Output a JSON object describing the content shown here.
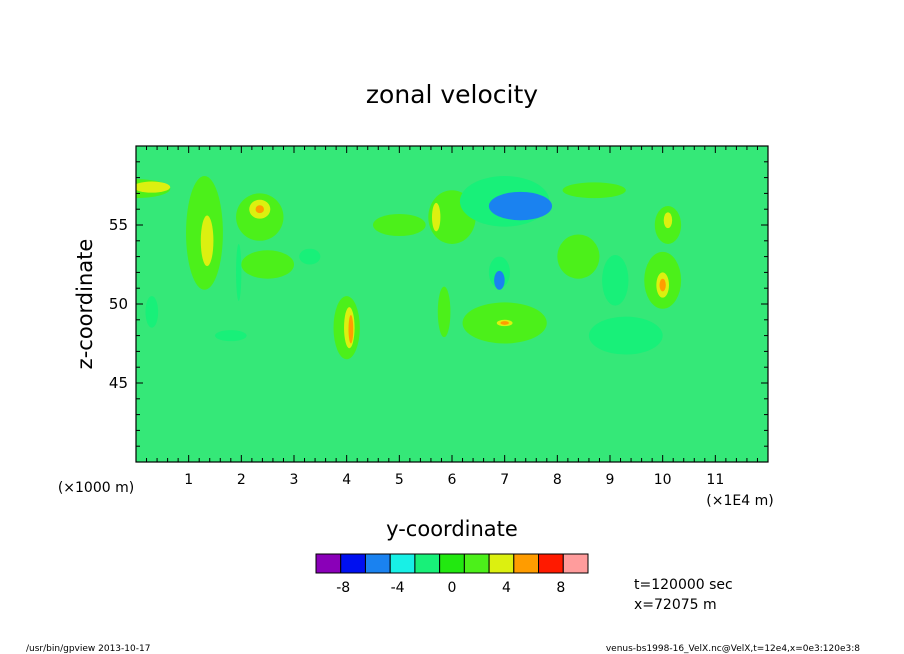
{
  "chart_data": {
    "type": "heatmap",
    "title": "zonal velocity",
    "xlabel": "y-coordinate",
    "ylabel": "z-coordinate",
    "x_unit_left": "(×1000 m)",
    "x_unit_right": "(×1E4 m)",
    "x_ticks": [
      "1",
      "2",
      "3",
      "4",
      "5",
      "6",
      "7",
      "8",
      "9",
      "10",
      "11"
    ],
    "y_ticks": [
      "45",
      "50",
      "55"
    ],
    "xlim": [
      0,
      12
    ],
    "ylim": [
      40,
      60
    ],
    "colorbar": {
      "levels": [
        -10,
        -8,
        -6,
        -4,
        -2,
        0,
        2,
        4,
        6,
        8,
        10
      ],
      "labels": [
        "-8",
        "-4",
        "0",
        "4",
        "8"
      ],
      "colors": [
        "#8a00b8",
        "#0010f0",
        "#1a82f0",
        "#18f0e6",
        "#18f079",
        "#22e810",
        "#4cf01a",
        "#dcf010",
        "#ff9c00",
        "#ff1a00",
        "#ff9c9c"
      ]
    },
    "background_color": "#35e878",
    "regions": [
      {
        "v": 2,
        "x": 0.0,
        "y": 57.3,
        "rx": 0.65,
        "ry": 0.6
      },
      {
        "v": 4,
        "x": 0.3,
        "y": 57.4,
        "rx": 0.35,
        "ry": 0.35
      },
      {
        "v": 2,
        "x": 1.3,
        "y": 54.5,
        "rx": 0.35,
        "ry": 3.6
      },
      {
        "v": 4,
        "x": 1.35,
        "y": 54.0,
        "rx": 0.12,
        "ry": 1.6
      },
      {
        "v": 2,
        "x": 2.35,
        "y": 55.5,
        "rx": 0.45,
        "ry": 1.5
      },
      {
        "v": 4,
        "x": 2.35,
        "y": 56.0,
        "rx": 0.2,
        "ry": 0.6
      },
      {
        "v": 6,
        "x": 2.35,
        "y": 56.0,
        "rx": 0.08,
        "ry": 0.25
      },
      {
        "v": -2,
        "x": 1.95,
        "y": 52.0,
        "rx": 0.05,
        "ry": 1.8
      },
      {
        "v": 2,
        "x": 2.5,
        "y": 52.5,
        "rx": 0.5,
        "ry": 0.9
      },
      {
        "v": -2,
        "x": 3.3,
        "y": 53.0,
        "rx": 0.2,
        "ry": 0.5
      },
      {
        "v": 2,
        "x": 4.0,
        "y": 48.5,
        "rx": 0.25,
        "ry": 2.0
      },
      {
        "v": 4,
        "x": 4.05,
        "y": 48.5,
        "rx": 0.1,
        "ry": 1.3
      },
      {
        "v": 6,
        "x": 4.08,
        "y": 48.4,
        "rx": 0.045,
        "ry": 0.9
      },
      {
        "v": 2,
        "x": 5.0,
        "y": 55.0,
        "rx": 0.5,
        "ry": 0.7
      },
      {
        "v": 2,
        "x": 6.0,
        "y": 55.5,
        "rx": 0.45,
        "ry": 1.7
      },
      {
        "v": 4,
        "x": 5.7,
        "y": 55.5,
        "rx": 0.08,
        "ry": 0.9
      },
      {
        "v": 2,
        "x": 5.85,
        "y": 49.5,
        "rx": 0.12,
        "ry": 1.6
      },
      {
        "v": -2,
        "x": 7.0,
        "y": 56.5,
        "rx": 0.85,
        "ry": 1.6
      },
      {
        "v": -6,
        "x": 7.3,
        "y": 56.2,
        "rx": 0.6,
        "ry": 0.9
      },
      {
        "v": -2,
        "x": 6.9,
        "y": 52.0,
        "rx": 0.2,
        "ry": 1.0
      },
      {
        "v": -6,
        "x": 6.9,
        "y": 51.5,
        "rx": 0.1,
        "ry": 0.6
      },
      {
        "v": 2,
        "x": 7.0,
        "y": 48.8,
        "rx": 0.8,
        "ry": 1.3
      },
      {
        "v": 4,
        "x": 7.0,
        "y": 48.8,
        "rx": 0.15,
        "ry": 0.2
      },
      {
        "v": 6,
        "x": 7.0,
        "y": 48.8,
        "rx": 0.08,
        "ry": 0.12
      },
      {
        "v": 2,
        "x": 8.4,
        "y": 53.0,
        "rx": 0.4,
        "ry": 1.4
      },
      {
        "v": 2,
        "x": 8.7,
        "y": 57.2,
        "rx": 0.6,
        "ry": 0.5
      },
      {
        "v": -2,
        "x": 9.3,
        "y": 48.0,
        "rx": 0.7,
        "ry": 1.2
      },
      {
        "v": -2,
        "x": 9.1,
        "y": 51.5,
        "rx": 0.25,
        "ry": 1.6
      },
      {
        "v": 2,
        "x": 10.0,
        "y": 51.5,
        "rx": 0.35,
        "ry": 1.8
      },
      {
        "v": 4,
        "x": 10.0,
        "y": 51.2,
        "rx": 0.12,
        "ry": 0.8
      },
      {
        "v": 6,
        "x": 10.0,
        "y": 51.2,
        "rx": 0.06,
        "ry": 0.4
      },
      {
        "v": 2,
        "x": 10.1,
        "y": 55.0,
        "rx": 0.25,
        "ry": 1.2
      },
      {
        "v": 4,
        "x": 10.1,
        "y": 55.3,
        "rx": 0.08,
        "ry": 0.5
      },
      {
        "v": -2,
        "x": 0.3,
        "y": 49.5,
        "rx": 0.12,
        "ry": 1.0
      },
      {
        "v": -2,
        "x": 1.8,
        "y": 48.0,
        "rx": 0.3,
        "ry": 0.35
      }
    ],
    "annotations": {
      "time": "t=120000 sec",
      "position": "x=72075 m"
    }
  },
  "footer": {
    "left": "/usr/bin/gpview   2013-10-17",
    "right": "venus-bs1998-16_VelX.nc@VelX,t=12e4,x=0e3:120e3:8"
  }
}
